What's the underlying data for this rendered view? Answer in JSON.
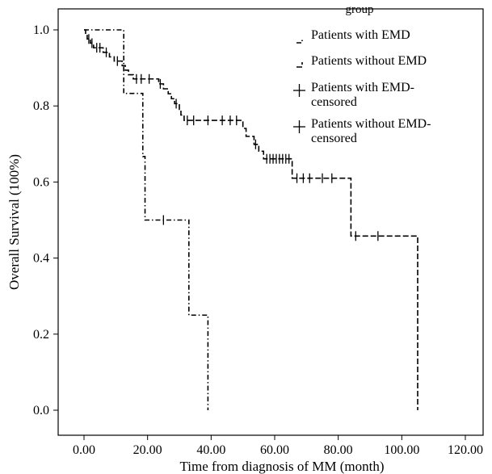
{
  "chart_data": {
    "type": "line",
    "title": "",
    "xlabel": "Time from diagnosis of MM (month)",
    "ylabel": "Overall Survival (100%)",
    "xlim": [
      0,
      120
    ],
    "ylim": [
      0,
      1.0
    ],
    "x_ticks": [
      0,
      20,
      40,
      60,
      80,
      100,
      120
    ],
    "x_tick_labels": [
      "0.00",
      "20.00",
      "40.00",
      "60.00",
      "80.00",
      "100.00",
      "120.00"
    ],
    "y_ticks": [
      0.0,
      0.2,
      0.4,
      0.6,
      0.8,
      1.0
    ],
    "y_tick_labels": [
      "0.0",
      "0.2",
      "0.4",
      "0.6",
      "0.8",
      "1.0"
    ],
    "grid": false,
    "legend": {
      "title": "group",
      "placement": "top-right",
      "entries": [
        "Patients with EMD",
        "Patients without EMD",
        "Patients with EMD-\ncensored",
        "Patients without EMD-\ncensored"
      ]
    },
    "series": [
      {
        "name": "Patients with EMD",
        "style": "dashdot",
        "steps": [
          [
            0,
            1.0
          ],
          [
            12.5,
            0.833
          ],
          [
            18.5,
            0.667
          ],
          [
            19.2,
            0.5
          ],
          [
            33,
            0.25
          ],
          [
            39,
            0.0
          ]
        ],
        "censored": [
          [
            25,
            0.5
          ]
        ]
      },
      {
        "name": "Patients without EMD",
        "style": "dashed",
        "steps": [
          [
            0,
            1.0
          ],
          [
            0.5,
            0.988
          ],
          [
            1.0,
            0.976
          ],
          [
            2.0,
            0.965
          ],
          [
            3.0,
            0.953
          ],
          [
            6.0,
            0.941
          ],
          [
            8.0,
            0.929
          ],
          [
            9.5,
            0.918
          ],
          [
            12.0,
            0.906
          ],
          [
            13.0,
            0.894
          ],
          [
            14.0,
            0.882
          ],
          [
            15.5,
            0.871
          ],
          [
            23.5,
            0.858
          ],
          [
            25.0,
            0.845
          ],
          [
            26.5,
            0.832
          ],
          [
            27.5,
            0.819
          ],
          [
            28.5,
            0.806
          ],
          [
            30.0,
            0.791
          ],
          [
            30.5,
            0.776
          ],
          [
            31.5,
            0.762
          ],
          [
            50.0,
            0.741
          ],
          [
            51.0,
            0.72
          ],
          [
            53.5,
            0.699
          ],
          [
            55.0,
            0.681
          ],
          [
            56.5,
            0.661
          ],
          [
            65.5,
            0.61
          ],
          [
            84.0,
            0.458
          ],
          [
            105.0,
            0.0
          ]
        ],
        "censored": [
          [
            1.5,
            0.976
          ],
          [
            2.5,
            0.965
          ],
          [
            4.0,
            0.953
          ],
          [
            5.0,
            0.953
          ],
          [
            7.0,
            0.941
          ],
          [
            10.5,
            0.918
          ],
          [
            16.5,
            0.871
          ],
          [
            18.0,
            0.871
          ],
          [
            20.5,
            0.871
          ],
          [
            24.0,
            0.858
          ],
          [
            29.0,
            0.806
          ],
          [
            32.5,
            0.762
          ],
          [
            34.5,
            0.762
          ],
          [
            39.0,
            0.762
          ],
          [
            43.5,
            0.762
          ],
          [
            46.0,
            0.762
          ],
          [
            48.0,
            0.762
          ],
          [
            54.0,
            0.699
          ],
          [
            57.5,
            0.661
          ],
          [
            58.5,
            0.661
          ],
          [
            59.5,
            0.661
          ],
          [
            60.5,
            0.661
          ],
          [
            61.5,
            0.661
          ],
          [
            62.5,
            0.661
          ],
          [
            63.5,
            0.661
          ],
          [
            64.5,
            0.661
          ],
          [
            67.0,
            0.61
          ],
          [
            69.0,
            0.61
          ],
          [
            71.0,
            0.61
          ],
          [
            75.0,
            0.61
          ],
          [
            78.0,
            0.61
          ],
          [
            85.5,
            0.458
          ],
          [
            92.5,
            0.458
          ]
        ]
      }
    ]
  }
}
